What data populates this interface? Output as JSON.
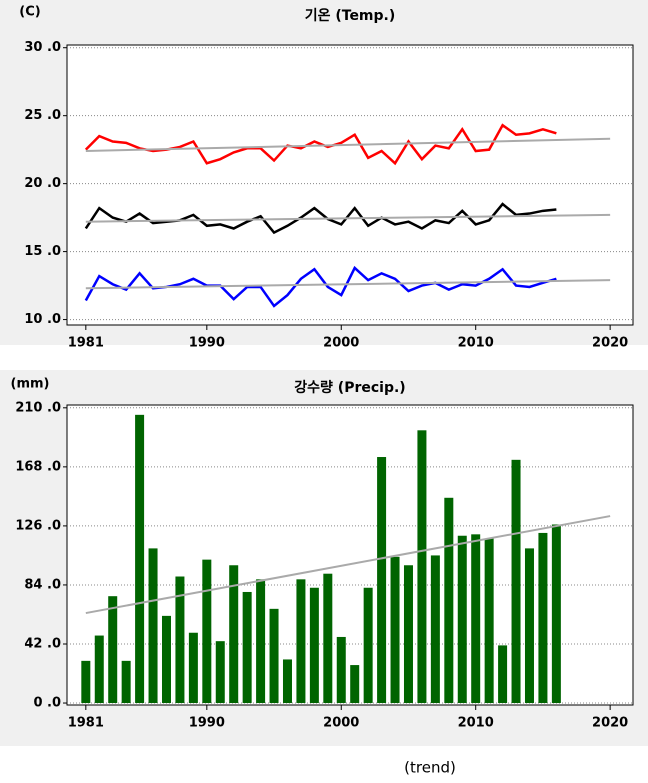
{
  "chart_data": [
    {
      "type": "line",
      "title": "기온 (Temp.)",
      "y_unit": "(C)",
      "x": [
        1981,
        1982,
        1983,
        1984,
        1985,
        1986,
        1987,
        1988,
        1989,
        1990,
        1991,
        1992,
        1993,
        1994,
        1995,
        1996,
        1997,
        1998,
        1999,
        2000,
        2001,
        2002,
        2003,
        2004,
        2005,
        2006,
        2007,
        2008,
        2009,
        2010,
        2011,
        2012,
        2013,
        2014,
        2015,
        2016
      ],
      "series": [
        {
          "color": "#ff0000",
          "values": [
            22.5,
            23.5,
            23.1,
            23.0,
            22.6,
            22.4,
            22.5,
            22.7,
            23.1,
            21.5,
            21.8,
            22.3,
            22.6,
            22.6,
            21.7,
            22.8,
            22.6,
            23.1,
            22.7,
            23.0,
            23.6,
            21.9,
            22.4,
            21.5,
            23.1,
            21.8,
            22.8,
            22.6,
            24.0,
            22.4,
            22.5,
            24.3,
            23.6,
            23.7,
            24.0,
            23.7
          ],
          "trend": [
            22.4,
            23.3
          ]
        },
        {
          "color": "#000000",
          "values": [
            16.7,
            18.2,
            17.5,
            17.2,
            17.8,
            17.1,
            17.2,
            17.3,
            17.7,
            16.9,
            17.0,
            16.7,
            17.2,
            17.6,
            16.4,
            16.9,
            17.5,
            18.2,
            17.4,
            17.0,
            18.2,
            16.9,
            17.5,
            17.0,
            17.2,
            16.7,
            17.3,
            17.1,
            18.0,
            17.0,
            17.3,
            18.5,
            17.7,
            17.8,
            18.0,
            18.1
          ],
          "trend": [
            17.2,
            17.7
          ]
        },
        {
          "color": "#0000ff",
          "values": [
            11.4,
            13.2,
            12.6,
            12.2,
            13.4,
            12.3,
            12.4,
            12.6,
            13.0,
            12.5,
            12.5,
            11.5,
            12.4,
            12.4,
            11.0,
            11.8,
            13.0,
            13.7,
            12.4,
            11.8,
            13.8,
            12.9,
            13.4,
            13.0,
            12.1,
            12.5,
            12.7,
            12.2,
            12.6,
            12.5,
            13.0,
            13.7,
            12.5,
            12.4,
            12.7,
            13.0
          ],
          "trend": [
            12.3,
            12.9
          ]
        }
      ],
      "trend_x": [
        1981,
        2020
      ],
      "trend_color": "#aaaaaa",
      "xlim": [
        1979.6,
        2021.7
      ],
      "xticks": [
        1981,
        1990,
        2000,
        2010,
        2020
      ],
      "ylim": [
        9.6,
        30.2
      ],
      "yticks": [
        {
          "value": 10,
          "label": "10 .0"
        },
        {
          "value": 15,
          "label": "15 .0"
        },
        {
          "value": 20,
          "label": "20 .0"
        },
        {
          "value": 25,
          "label": "25 .0"
        },
        {
          "value": 30,
          "label": "30 .0"
        }
      ],
      "grid": true
    },
    {
      "type": "bar",
      "title": "강수량 (Precip.)",
      "y_unit": "(mm)",
      "x": [
        1981,
        1982,
        1983,
        1984,
        1985,
        1986,
        1987,
        1988,
        1989,
        1990,
        1991,
        1992,
        1993,
        1994,
        1995,
        1996,
        1997,
        1998,
        1999,
        2000,
        2001,
        2002,
        2003,
        2004,
        2005,
        2006,
        2007,
        2008,
        2009,
        2010,
        2011,
        2012,
        2013,
        2014,
        2015,
        2016
      ],
      "values": [
        30,
        48,
        76,
        30,
        205,
        110,
        62,
        90,
        50,
        102,
        44,
        98,
        79,
        88,
        67,
        31,
        88,
        82,
        92,
        47,
        27,
        82,
        175,
        104,
        98,
        194,
        105,
        146,
        119,
        120,
        117,
        41,
        173,
        110,
        121,
        127
      ],
      "color": "#006400",
      "trend_x": [
        1981,
        2020
      ],
      "trend": [
        64,
        133
      ],
      "trend_color": "#aaaaaa",
      "xlim": [
        1979.6,
        2021.7
      ],
      "xticks": [
        1981,
        1990,
        2000,
        2010,
        2020
      ],
      "ylim": [
        -1.4,
        212
      ],
      "yticks": [
        {
          "value": 0,
          "label": "0 .0"
        },
        {
          "value": 42,
          "label": "42 .0"
        },
        {
          "value": 84,
          "label": "84 .0"
        },
        {
          "value": 126,
          "label": "126 .0"
        },
        {
          "value": 168,
          "label": "168 .0"
        },
        {
          "value": 210,
          "label": "210 .0"
        }
      ],
      "grid": true
    }
  ],
  "footer": "(trend)"
}
